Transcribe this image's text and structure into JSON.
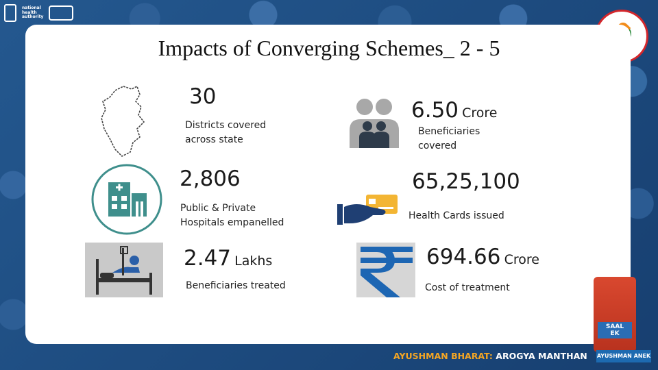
{
  "slide": {
    "title": "Impacts of Converging Schemes_ 2 - 5",
    "stats": [
      {
        "value": "30",
        "unit": "",
        "caption_lines": [
          "Districts covered",
          "across state"
        ],
        "icon": "karnataka-map-icon"
      },
      {
        "value": "6.50",
        "unit": "Crore",
        "caption_lines": [
          "Beneficiaries",
          "covered"
        ],
        "icon": "family-icon"
      },
      {
        "value": "2,806",
        "unit": "",
        "caption_lines": [
          "Public & Private",
          "Hospitals empanelled"
        ],
        "icon": "hospital-icon"
      },
      {
        "value": "65,25,100",
        "unit": "",
        "caption_lines": [
          "Health Cards issued"
        ],
        "icon": "health-card-icon"
      },
      {
        "value": "2.47",
        "unit": "Lakhs",
        "caption_lines": [
          "Beneficiaries treated"
        ],
        "icon": "patient-bed-icon"
      },
      {
        "value": "694.66",
        "unit": "Crore",
        "caption_lines": [
          "Cost of treatment"
        ],
        "icon": "rupee-icon"
      }
    ]
  },
  "footer": {
    "brand_highlight": "AYUSHMAN BHARAT:",
    "brand_rest": "AROGYA MANTHAN",
    "tag": "AYUSHMAN ANEK",
    "badge": [
      "SAAL",
      "EK"
    ]
  },
  "colors": {
    "background": "#1f4f86",
    "teal": "#3f8f8c",
    "navy": "#1f3f73",
    "rupee_blue": "#1d66b3",
    "accent_orange": "#f5a623"
  }
}
